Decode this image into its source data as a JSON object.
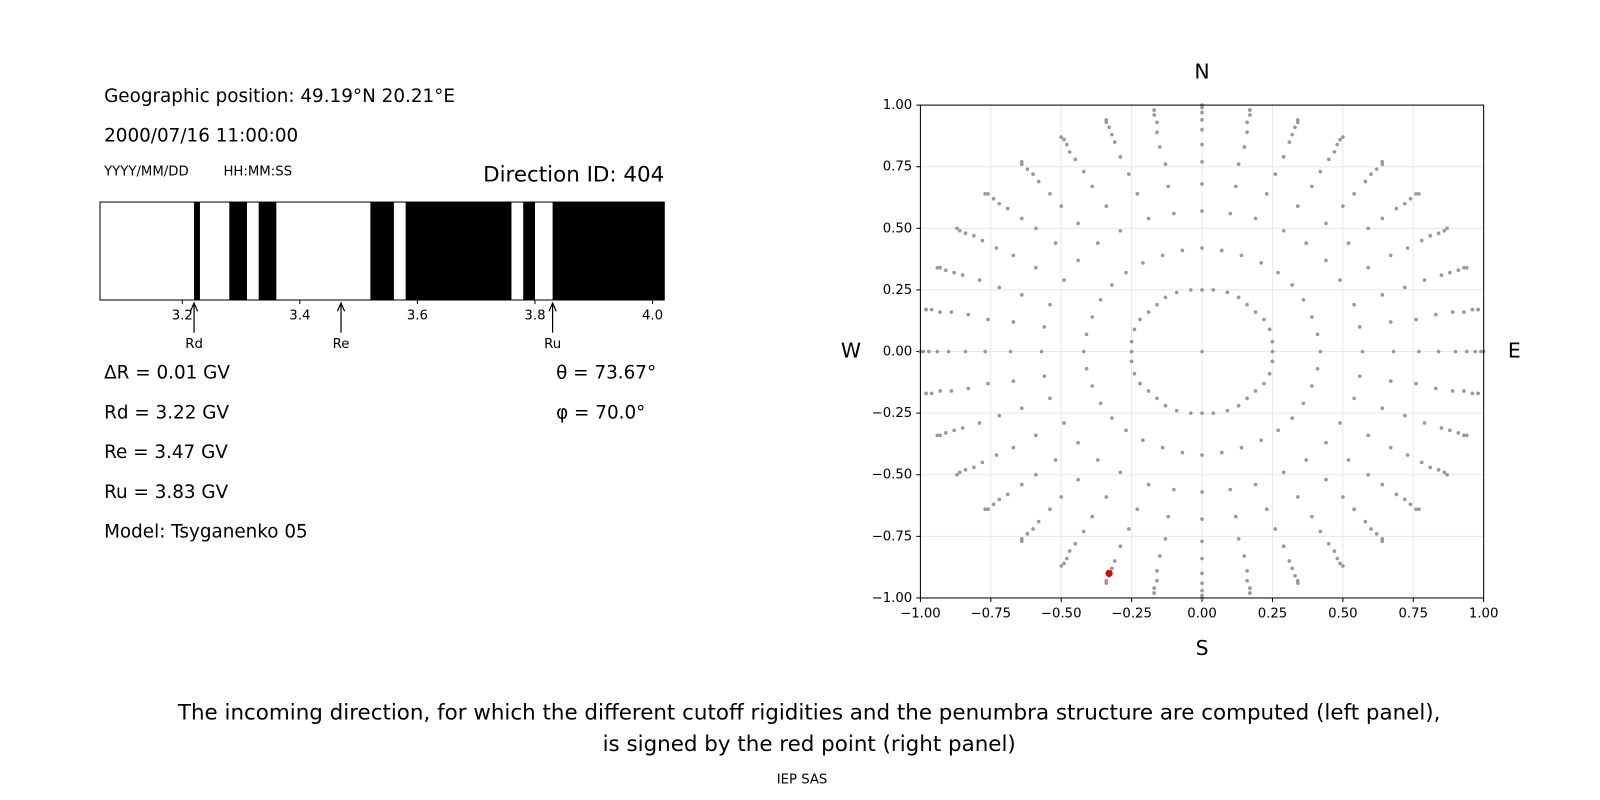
{
  "info": {
    "position": "Geographic position: 49.19°N 20.21°E",
    "datetime": "2000/07/16 11:00:00",
    "date_format": "YYYY/MM/DD",
    "time_format": "HH:MM:SS",
    "direction_id": "Direction ID: 404",
    "delta_r": "ΔR = 0.01 GV",
    "rd": "Rd = 3.22 GV",
    "re": "Re = 3.47 GV",
    "ru": "Ru = 3.83 GV",
    "model": "Model: Tsyganenko 05",
    "theta": "θ = 73.67°",
    "phi": "φ = 70.0°"
  },
  "caption": [
    "The incoming direction, for which the different cutoff rigidities and the penumbra structure are computed (left panel),",
    "is signed by the red point (right panel)"
  ],
  "footer": "IEP SAS",
  "chart_data": [
    {
      "type": "penumbra",
      "xlim": [
        3.06,
        4.02
      ],
      "xticks": [
        3.2,
        3.4,
        3.6,
        3.8,
        {
          "value": 4,
          "label": "4.0"
        }
      ],
      "color": "#000000",
      "bands": [
        [
          3.22,
          3.23
        ],
        [
          3.28,
          3.31
        ],
        [
          3.33,
          3.36
        ],
        [
          3.52,
          3.56
        ],
        [
          3.58,
          3.76
        ],
        [
          3.78,
          3.8
        ],
        [
          3.83,
          4.02
        ]
      ],
      "annotations": [
        {
          "label": "Rd",
          "x": 3.22
        },
        {
          "label": "Re",
          "x": 3.47
        },
        {
          "label": "Ru",
          "x": 3.83
        }
      ]
    },
    {
      "type": "scatter",
      "color": "#999999",
      "grid": true,
      "xlim": [
        -1,
        1
      ],
      "ylim": [
        -1,
        1
      ],
      "xticks": [
        {
          "value": -1,
          "label": "−1.00"
        },
        {
          "value": -0.75,
          "label": "−0.75"
        },
        {
          "value": -0.5,
          "label": "−0.50"
        },
        {
          "value": -0.25,
          "label": "−0.25"
        },
        {
          "value": 0,
          "label": "0.00"
        },
        {
          "value": 0.25,
          "label": "0.25"
        },
        {
          "value": 0.5,
          "label": "0.50"
        },
        {
          "value": 0.75,
          "label": "0.75"
        },
        {
          "value": 1,
          "label": "1.00"
        }
      ],
      "yticks": [
        {
          "value": -1,
          "label": "−1.00"
        },
        {
          "value": -0.75,
          "label": "−0.75"
        },
        {
          "value": -0.5,
          "label": "−0.50"
        },
        {
          "value": -0.25,
          "label": "−0.25"
        },
        {
          "value": 0,
          "label": "0.00"
        },
        {
          "value": 0.25,
          "label": "0.25"
        },
        {
          "value": 0.5,
          "label": "0.50"
        },
        {
          "value": 0.75,
          "label": "0.75"
        },
        {
          "value": 1,
          "label": "1.00"
        }
      ],
      "compass": {
        "top": "N",
        "bottom": "S",
        "left": "W",
        "right": "E"
      },
      "highlight": {
        "x": -0.33,
        "y": -0.9,
        "color": "#e00000"
      },
      "x": [
        0,
        0,
        0.04,
        0.09,
        0.13,
        0.16,
        0.19,
        0.22,
        0.24,
        0.25,
        0.25,
        0.25,
        0.24,
        0.22,
        0.19,
        0.16,
        0.13,
        0.09,
        0.04,
        0,
        -0.04,
        -0.09,
        -0.13,
        -0.16,
        -0.19,
        -0.22,
        -0.24,
        -0.25,
        -0.25,
        -0.25,
        -0.24,
        -0.22,
        -0.19,
        -0.16,
        -0.13,
        -0.09,
        -0.04,
        0,
        0.07,
        0.14,
        0.21,
        0.27,
        0.32,
        0.36,
        0.39,
        0.41,
        0.42,
        0.41,
        0.39,
        0.36,
        0.32,
        0.27,
        0.21,
        0.14,
        0.07,
        0,
        -0.07,
        -0.14,
        -0.21,
        -0.27,
        -0.32,
        -0.36,
        -0.39,
        -0.41,
        -0.42,
        -0.41,
        -0.39,
        -0.36,
        -0.32,
        -0.27,
        -0.21,
        -0.14,
        -0.07,
        0,
        0.1,
        0.19,
        0.29,
        0.37,
        0.44,
        0.49,
        0.54,
        0.56,
        0.57,
        0.56,
        0.54,
        0.49,
        0.44,
        0.37,
        0.29,
        0.19,
        0.1,
        0,
        -0.1,
        -0.19,
        -0.29,
        -0.37,
        -0.44,
        -0.49,
        -0.54,
        -0.56,
        -0.57,
        -0.56,
        -0.54,
        -0.49,
        -0.44,
        -0.37,
        -0.29,
        -0.19,
        -0.1,
        0,
        0.12,
        0.23,
        0.34,
        0.44,
        0.52,
        0.59,
        0.64,
        0.67,
        0.68,
        0.67,
        0.64,
        0.59,
        0.52,
        0.44,
        0.34,
        0.23,
        0.12,
        0,
        -0.12,
        -0.23,
        -0.34,
        -0.44,
        -0.52,
        -0.59,
        -0.64,
        -0.67,
        -0.68,
        -0.67,
        -0.64,
        -0.59,
        -0.52,
        -0.44,
        -0.34,
        -0.23,
        -0.12,
        0,
        0.13,
        0.26,
        0.39,
        0.5,
        0.59,
        0.67,
        0.72,
        0.76,
        0.77,
        0.76,
        0.72,
        0.67,
        0.59,
        0.5,
        0.39,
        0.26,
        0.13,
        0,
        -0.13,
        -0.26,
        -0.39,
        -0.5,
        -0.59,
        -0.67,
        -0.72,
        -0.76,
        -0.77,
        -0.76,
        -0.72,
        -0.67,
        -0.59,
        -0.5,
        -0.39,
        -0.26,
        -0.13,
        0,
        0.15,
        0.29,
        0.42,
        0.54,
        0.64,
        0.73,
        0.79,
        0.83,
        0.84,
        0.83,
        0.79,
        0.73,
        0.64,
        0.54,
        0.42,
        0.29,
        0.15,
        0,
        -0.15,
        -0.29,
        -0.42,
        -0.54,
        -0.64,
        -0.73,
        -0.79,
        -0.83,
        -0.84,
        -0.83,
        -0.79,
        -0.73,
        -0.64,
        -0.54,
        -0.42,
        -0.29,
        -0.15,
        0,
        0.16,
        0.31,
        0.45,
        0.58,
        0.69,
        0.78,
        0.85,
        0.89,
        0.9,
        0.89,
        0.85,
        0.78,
        0.69,
        0.58,
        0.45,
        0.31,
        0.16,
        0,
        -0.16,
        -0.31,
        -0.45,
        -0.58,
        -0.69,
        -0.78,
        -0.85,
        -0.89,
        -0.9,
        -0.89,
        -0.85,
        -0.78,
        -0.69,
        -0.58,
        -0.45,
        -0.31,
        -0.16,
        0,
        0.16,
        0.32,
        0.47,
        0.6,
        0.72,
        0.81,
        0.88,
        0.93,
        0.94,
        0.93,
        0.88,
        0.81,
        0.72,
        0.6,
        0.47,
        0.32,
        0.16,
        0,
        -0.16,
        -0.32,
        -0.47,
        -0.6,
        -0.72,
        -0.81,
        -0.88,
        -0.93,
        -0.94,
        -0.93,
        -0.88,
        -0.81,
        -0.72,
        -0.6,
        -0.47,
        -0.32,
        -0.16,
        0,
        0.17,
        0.33,
        0.48,
        0.62,
        0.74,
        0.84,
        0.91,
        0.96,
        0.97,
        0.96,
        0.91,
        0.84,
        0.74,
        0.62,
        0.48,
        0.33,
        0.17,
        0,
        -0.17,
        -0.33,
        -0.48,
        -0.62,
        -0.74,
        -0.84,
        -0.91,
        -0.96,
        -0.97,
        -0.96,
        -0.91,
        -0.84,
        -0.74,
        -0.62,
        -0.48,
        -0.33,
        -0.17,
        0,
        0.17,
        0.34,
        0.49,
        0.64,
        0.76,
        0.86,
        0.93,
        0.98,
        0.99,
        0.98,
        0.93,
        0.86,
        0.76,
        0.64,
        0.49,
        0.34,
        0.17,
        0,
        -0.17,
        -0.34,
        -0.49,
        -0.64,
        -0.76,
        -0.86,
        -0.93,
        -0.98,
        -0.99,
        -0.98,
        -0.93,
        -0.86,
        -0.76,
        -0.64,
        -0.49,
        -0.34,
        -0.17,
        0,
        0.17,
        0.34,
        0.5,
        0.64,
        0.77,
        0.87,
        0.94,
        0.98,
        1,
        0.98,
        0.94,
        0.87,
        0.77,
        0.64,
        0.5,
        0.34,
        0.17,
        0,
        -0.17,
        -0.34,
        -0.5,
        -0.64,
        -0.77,
        -0.87,
        -0.94,
        -0.98,
        -1,
        -0.98,
        -0.94,
        -0.87,
        -0.77,
        -0.64,
        -0.5,
        -0.34,
        -0.17
      ],
      "y": [
        0,
        0.25,
        0.25,
        0.24,
        0.22,
        0.19,
        0.16,
        0.13,
        0.09,
        0.04,
        0,
        -0.04,
        -0.09,
        -0.13,
        -0.16,
        -0.19,
        -0.22,
        -0.24,
        -0.25,
        -0.25,
        -0.25,
        -0.24,
        -0.22,
        -0.19,
        -0.16,
        -0.13,
        -0.09,
        -0.04,
        0,
        0.04,
        0.09,
        0.13,
        0.16,
        0.19,
        0.22,
        0.24,
        0.25,
        0.42,
        0.41,
        0.39,
        0.36,
        0.32,
        0.27,
        0.21,
        0.14,
        0.07,
        0,
        -0.07,
        -0.14,
        -0.21,
        -0.27,
        -0.32,
        -0.36,
        -0.39,
        -0.41,
        -0.42,
        -0.41,
        -0.39,
        -0.36,
        -0.32,
        -0.27,
        -0.21,
        -0.14,
        -0.07,
        0,
        0.07,
        0.14,
        0.21,
        0.27,
        0.32,
        0.36,
        0.39,
        0.41,
        0.57,
        0.56,
        0.54,
        0.49,
        0.44,
        0.37,
        0.29,
        0.19,
        0.1,
        0,
        -0.1,
        -0.19,
        -0.29,
        -0.37,
        -0.44,
        -0.49,
        -0.54,
        -0.56,
        -0.57,
        -0.56,
        -0.54,
        -0.49,
        -0.44,
        -0.37,
        -0.29,
        -0.19,
        -0.1,
        0,
        0.1,
        0.19,
        0.29,
        0.37,
        0.44,
        0.49,
        0.54,
        0.56,
        0.68,
        0.67,
        0.64,
        0.59,
        0.52,
        0.44,
        0.34,
        0.23,
        0.12,
        0,
        -0.12,
        -0.23,
        -0.34,
        -0.44,
        -0.52,
        -0.59,
        -0.64,
        -0.67,
        -0.68,
        -0.67,
        -0.64,
        -0.59,
        -0.52,
        -0.44,
        -0.34,
        -0.23,
        -0.12,
        0,
        0.12,
        0.23,
        0.34,
        0.44,
        0.52,
        0.59,
        0.64,
        0.67,
        0.77,
        0.76,
        0.72,
        0.67,
        0.59,
        0.5,
        0.39,
        0.26,
        0.13,
        0,
        -0.13,
        -0.26,
        -0.39,
        -0.5,
        -0.59,
        -0.67,
        -0.72,
        -0.76,
        -0.77,
        -0.76,
        -0.72,
        -0.67,
        -0.59,
        -0.5,
        -0.39,
        -0.26,
        -0.13,
        0,
        0.13,
        0.26,
        0.39,
        0.5,
        0.59,
        0.67,
        0.72,
        0.76,
        0.84,
        0.83,
        0.79,
        0.73,
        0.64,
        0.54,
        0.42,
        0.29,
        0.15,
        0,
        -0.15,
        -0.29,
        -0.42,
        -0.54,
        -0.64,
        -0.73,
        -0.79,
        -0.83,
        -0.84,
        -0.83,
        -0.79,
        -0.73,
        -0.64,
        -0.54,
        -0.42,
        -0.29,
        -0.15,
        0,
        0.15,
        0.29,
        0.42,
        0.54,
        0.64,
        0.73,
        0.79,
        0.83,
        0.9,
        0.89,
        0.85,
        0.78,
        0.69,
        0.58,
        0.45,
        0.31,
        0.16,
        0,
        -0.16,
        -0.31,
        -0.45,
        -0.58,
        -0.69,
        -0.78,
        -0.85,
        -0.89,
        -0.9,
        -0.89,
        -0.85,
        -0.78,
        -0.69,
        -0.58,
        -0.45,
        -0.31,
        -0.16,
        0,
        0.16,
        0.31,
        0.45,
        0.58,
        0.69,
        0.78,
        0.85,
        0.89,
        0.94,
        0.93,
        0.88,
        0.81,
        0.72,
        0.6,
        0.47,
        0.32,
        0.16,
        0,
        -0.16,
        -0.32,
        -0.47,
        -0.6,
        -0.72,
        -0.81,
        -0.88,
        -0.93,
        -0.94,
        -0.93,
        -0.88,
        -0.81,
        -0.72,
        -0.6,
        -0.47,
        -0.32,
        -0.16,
        0,
        0.16,
        0.32,
        0.47,
        0.6,
        0.72,
        0.81,
        0.88,
        0.93,
        0.97,
        0.96,
        0.91,
        0.84,
        0.74,
        0.62,
        0.48,
        0.33,
        0.17,
        0,
        -0.17,
        -0.33,
        -0.48,
        -0.62,
        -0.74,
        -0.84,
        -0.91,
        -0.96,
        -0.97,
        -0.96,
        -0.91,
        -0.84,
        -0.74,
        -0.62,
        -0.48,
        -0.33,
        -0.17,
        0,
        0.17,
        0.33,
        0.48,
        0.62,
        0.74,
        0.84,
        0.91,
        0.96,
        0.99,
        0.98,
        0.93,
        0.86,
        0.76,
        0.64,
        0.49,
        0.34,
        0.17,
        0,
        -0.17,
        -0.34,
        -0.49,
        -0.64,
        -0.76,
        -0.86,
        -0.93,
        -0.98,
        -0.99,
        -0.98,
        -0.93,
        -0.86,
        -0.76,
        -0.64,
        -0.49,
        -0.34,
        -0.17,
        0,
        0.17,
        0.34,
        0.49,
        0.64,
        0.76,
        0.86,
        0.93,
        0.98,
        1,
        0.98,
        0.94,
        0.87,
        0.77,
        0.64,
        0.5,
        0.34,
        0.17,
        0,
        -0.17,
        -0.34,
        -0.5,
        -0.64,
        -0.77,
        -0.87,
        -0.94,
        -0.98,
        -1,
        -0.98,
        -0.94,
        -0.87,
        -0.77,
        -0.64,
        -0.5,
        -0.34,
        -0.17,
        0,
        0.17,
        0.34,
        0.5,
        0.64,
        0.77,
        0.87,
        0.94,
        0.98
      ]
    }
  ]
}
